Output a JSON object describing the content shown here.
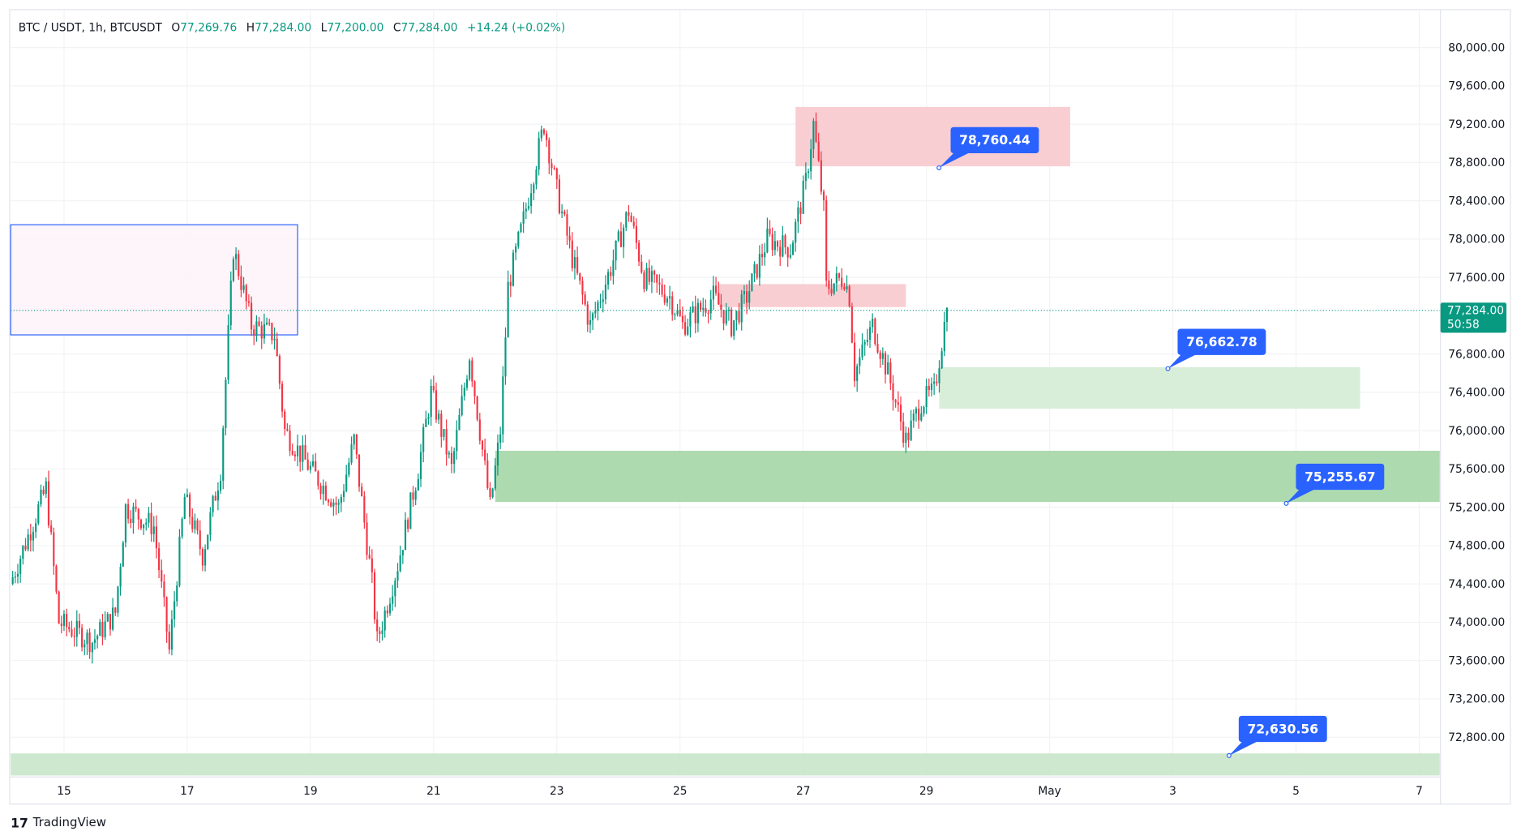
{
  "header": {
    "symbol": "BTC / USDT, 1h, BTCUSDT",
    "open_label": "O",
    "open": "77,269.76",
    "high_label": "H",
    "high": "77,284.00",
    "low_label": "L",
    "low": "77,200.00",
    "close_label": "C",
    "close": "77,284.00",
    "change": "+14.24 (+0.02%)"
  },
  "price_label": {
    "price": "77,284.00",
    "countdown": "50:58"
  },
  "watermark": "TradingView",
  "colors": {
    "up": "#089981",
    "down": "#f23645",
    "accent": "#2962ff",
    "green_zone": "#a5d6a7",
    "red_zone": "#f7c9ce"
  },
  "callouts": [
    "78,760.44",
    "76,662.78",
    "75,255.67",
    "72,630.56"
  ],
  "chart_data": {
    "type": "candlestick",
    "title": "BTC / USDT, 1h, BTCUSDT",
    "x_ticks": [
      "15",
      "17",
      "19",
      "21",
      "23",
      "25",
      "27",
      "29",
      "May",
      "3",
      "5",
      "7"
    ],
    "y_ticks": [
      "80,000.00",
      "79,600.00",
      "79,200.00",
      "78,800.00",
      "78,400.00",
      "78,000.00",
      "77,600.00",
      "76,800.00",
      "76,400.00",
      "76,000.00",
      "75,600.00",
      "75,200.00",
      "74,800.00",
      "74,400.00",
      "74,000.00",
      "73,600.00",
      "73,200.00",
      "72,800.00"
    ],
    "ylim": [
      72400,
      80300
    ],
    "x_unit": "hours since Apr 15 00:00",
    "close_path": [
      [
        -21,
        74400
      ],
      [
        -7,
        75400
      ],
      [
        -2,
        74000
      ],
      [
        11,
        73800
      ],
      [
        20,
        74100
      ],
      [
        24,
        75200
      ],
      [
        35,
        75000
      ],
      [
        41,
        73700
      ],
      [
        47,
        75300
      ],
      [
        54,
        74700
      ],
      [
        61,
        75600
      ],
      [
        64,
        77000
      ],
      [
        66,
        77900
      ],
      [
        73,
        77100
      ],
      [
        82,
        77000
      ],
      [
        86,
        76000
      ],
      [
        96,
        75600
      ],
      [
        107,
        75200
      ],
      [
        113,
        75900
      ],
      [
        120,
        74400
      ],
      [
        122,
        73800
      ],
      [
        130,
        74600
      ],
      [
        138,
        75600
      ],
      [
        143,
        76400
      ],
      [
        151,
        75600
      ],
      [
        158,
        76800
      ],
      [
        166,
        75200
      ],
      [
        170,
        76000
      ],
      [
        173,
        77500
      ],
      [
        179,
        78200
      ],
      [
        187,
        79200
      ],
      [
        192,
        78500
      ],
      [
        198,
        77800
      ],
      [
        205,
        77100
      ],
      [
        213,
        77700
      ],
      [
        220,
        78300
      ],
      [
        226,
        77600
      ],
      [
        236,
        77400
      ],
      [
        241,
        77100
      ],
      [
        253,
        77400
      ],
      [
        260,
        77100
      ],
      [
        266,
        77400
      ],
      [
        274,
        78000
      ],
      [
        283,
        77900
      ],
      [
        289,
        78600
      ],
      [
        292,
        79200
      ],
      [
        296,
        78300
      ],
      [
        297,
        77500
      ],
      [
        304,
        77600
      ],
      [
        306,
        77400
      ],
      [
        308,
        76600
      ],
      [
        315,
        77100
      ],
      [
        321,
        76600
      ],
      [
        328,
        75900
      ],
      [
        334,
        76300
      ],
      [
        339,
        76400
      ],
      [
        344,
        77284
      ]
    ],
    "zones": [
      {
        "type": "box",
        "from_h": -21,
        "to_h": 91,
        "low": 77000,
        "high": 78150
      },
      {
        "type": "resistance",
        "from_h": 285,
        "to_h": 392,
        "low": 78760,
        "high": 79380
      },
      {
        "type": "resistance",
        "from_h": 255,
        "to_h": 328,
        "low": 77290,
        "high": 77530
      },
      {
        "type": "support",
        "from_h": 341,
        "to_h": 505,
        "low": 76230,
        "high": 76663
      },
      {
        "type": "support",
        "from_h": 168,
        "to_h": 536,
        "low": 75256,
        "high": 75790
      },
      {
        "type": "support",
        "from_h": -21,
        "to_h": 536,
        "low": 72400,
        "high": 72631
      }
    ],
    "current_price": 77284
  }
}
